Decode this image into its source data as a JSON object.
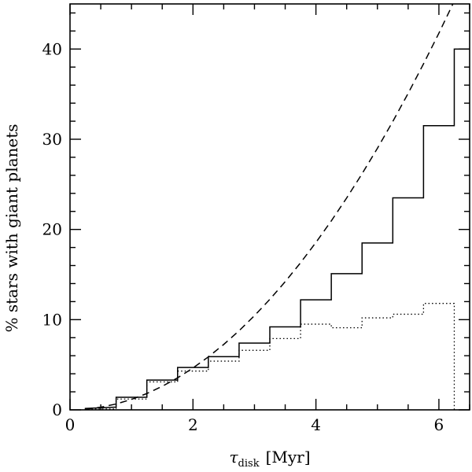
{
  "chart_data": {
    "type": "line",
    "xlabel_symbol": "τ",
    "xlabel_subscript": "disk",
    "xlabel_unit": "[Myr]",
    "ylabel": "% stars with giant planets",
    "xlim": [
      0,
      6.5
    ],
    "ylim": [
      0,
      45
    ],
    "x_ticks": [
      0,
      2,
      4,
      6
    ],
    "y_ticks": [
      0,
      10,
      20,
      30,
      40
    ],
    "grid": false,
    "legend": "none",
    "series": [
      {
        "style": "solid-step",
        "points": [
          [
            0.25,
            0
          ],
          [
            0.25,
            0.15
          ],
          [
            0.75,
            0.3
          ],
          [
            0.75,
            1.4
          ],
          [
            1.25,
            1.4
          ],
          [
            1.25,
            3.3
          ],
          [
            1.75,
            3.3
          ],
          [
            1.75,
            4.7
          ],
          [
            2.25,
            4.7
          ],
          [
            2.25,
            5.9
          ],
          [
            2.75,
            5.9
          ],
          [
            2.75,
            7.4
          ],
          [
            3.25,
            7.4
          ],
          [
            3.25,
            9.2
          ],
          [
            3.75,
            9.2
          ],
          [
            3.75,
            12.2
          ],
          [
            4.25,
            12.2
          ],
          [
            4.25,
            15.1
          ],
          [
            4.75,
            15.1
          ],
          [
            4.75,
            18.5
          ],
          [
            5.25,
            18.5
          ],
          [
            5.25,
            23.5
          ],
          [
            5.75,
            23.5
          ],
          [
            5.75,
            31.5
          ],
          [
            6.25,
            31.5
          ],
          [
            6.25,
            40.0
          ],
          [
            6.5,
            40.0
          ]
        ]
      },
      {
        "style": "dotted-step",
        "points": [
          [
            0.25,
            0
          ],
          [
            0.25,
            0.1
          ],
          [
            0.75,
            0.1
          ],
          [
            0.75,
            1.2
          ],
          [
            1.25,
            1.2
          ],
          [
            1.25,
            3.1
          ],
          [
            1.75,
            3.1
          ],
          [
            1.75,
            4.3
          ],
          [
            2.25,
            4.3
          ],
          [
            2.25,
            5.4
          ],
          [
            2.75,
            5.4
          ],
          [
            2.75,
            6.6
          ],
          [
            3.25,
            6.6
          ],
          [
            3.25,
            7.9
          ],
          [
            3.75,
            7.9
          ],
          [
            3.75,
            9.5
          ],
          [
            4.25,
            9.5
          ],
          [
            4.25,
            9.1
          ],
          [
            4.75,
            9.1
          ],
          [
            4.75,
            10.2
          ],
          [
            5.25,
            10.2
          ],
          [
            5.25,
            10.6
          ],
          [
            5.75,
            10.6
          ],
          [
            5.75,
            11.8
          ],
          [
            6.25,
            11.8
          ],
          [
            6.25,
            0
          ]
        ]
      },
      {
        "style": "dashed-curve",
        "points": [
          [
            0.25,
            0.07
          ],
          [
            0.5,
            0.29
          ],
          [
            0.75,
            0.65
          ],
          [
            1.0,
            1.16
          ],
          [
            1.25,
            1.81
          ],
          [
            1.5,
            2.61
          ],
          [
            1.75,
            3.55
          ],
          [
            2.0,
            4.64
          ],
          [
            2.25,
            5.87
          ],
          [
            2.5,
            7.25
          ],
          [
            2.75,
            8.77
          ],
          [
            3.0,
            10.44
          ],
          [
            3.25,
            12.25
          ],
          [
            3.5,
            14.21
          ],
          [
            3.75,
            16.31
          ],
          [
            4.0,
            18.56
          ],
          [
            4.25,
            20.95
          ],
          [
            4.5,
            23.49
          ],
          [
            4.75,
            26.17
          ],
          [
            5.0,
            29.0
          ],
          [
            5.25,
            31.97
          ],
          [
            5.5,
            35.09
          ],
          [
            5.75,
            38.36
          ],
          [
            6.0,
            41.76
          ],
          [
            6.25,
            45.32
          ],
          [
            6.5,
            49.0
          ]
        ]
      }
    ]
  }
}
